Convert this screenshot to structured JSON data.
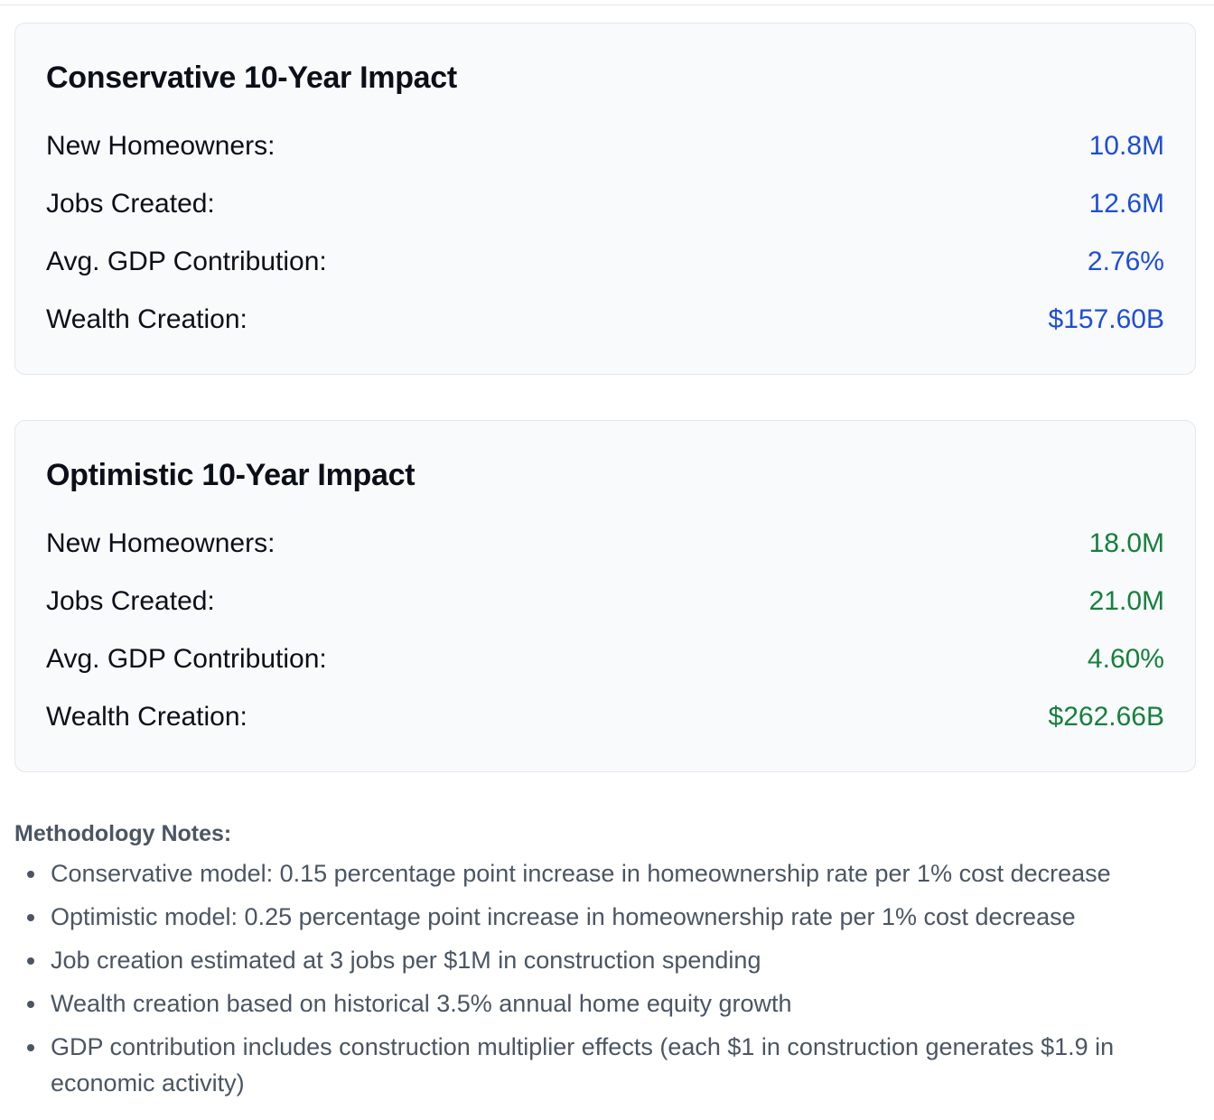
{
  "conservative": {
    "title": "Conservative 10-Year Impact",
    "rows": [
      {
        "label": "New Homeowners:",
        "value": "10.8M"
      },
      {
        "label": "Jobs Created:",
        "value": "12.6M"
      },
      {
        "label": "Avg. GDP Contribution:",
        "value": "2.76%"
      },
      {
        "label": "Wealth Creation:",
        "value": "$157.60B"
      }
    ],
    "value_color": "#1d4ed8"
  },
  "optimistic": {
    "title": "Optimistic 10-Year Impact",
    "rows": [
      {
        "label": "New Homeowners:",
        "value": "18.0M"
      },
      {
        "label": "Jobs Created:",
        "value": "21.0M"
      },
      {
        "label": "Avg. GDP Contribution:",
        "value": "4.60%"
      },
      {
        "label": "Wealth Creation:",
        "value": "$262.66B"
      }
    ],
    "value_color": "#15803d"
  },
  "notes": {
    "title": "Methodology Notes:",
    "items": [
      "Conservative model: 0.15 percentage point increase in homeownership rate per 1% cost decrease",
      "Optimistic model: 0.25 percentage point increase in homeownership rate per 1% cost decrease",
      "Job creation estimated at 3 jobs per $1M in construction spending",
      "Wealth creation based on historical 3.5% annual home equity growth",
      "GDP contribution includes construction multiplier effects (each $1 in construction generates $1.9 in economic activity)"
    ]
  }
}
